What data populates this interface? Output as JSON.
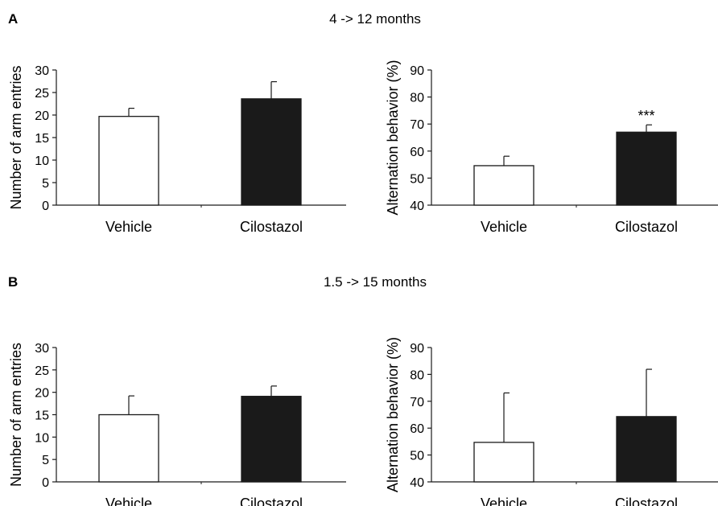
{
  "panels": [
    {
      "letter": "A",
      "title": "4 -> 12 months"
    },
    {
      "letter": "B",
      "title": "1.5 -> 15 months"
    }
  ],
  "colors": {
    "vehicle_fill": "#ffffff",
    "cilostazol_fill": "#1a1a1a",
    "stroke": "#1a1a1a"
  },
  "chart_data": [
    {
      "type": "bar",
      "panel": "A",
      "categories": [
        "Vehicle",
        "Cilostazol"
      ],
      "values": [
        19.7,
        23.6
      ],
      "error": [
        1.8,
        3.8
      ],
      "ylabel": "Number of arm entries",
      "ylim": [
        0,
        30
      ],
      "yticks": [
        0,
        5,
        10,
        15,
        20,
        25,
        30
      ],
      "annotations": [
        "",
        ""
      ]
    },
    {
      "type": "bar",
      "panel": "A",
      "categories": [
        "Vehicle",
        "Cilostazol"
      ],
      "values": [
        54.6,
        67.0
      ],
      "error": [
        3.5,
        2.7
      ],
      "ylabel": "Alternation behavior (%)",
      "ylim": [
        40,
        90
      ],
      "yticks": [
        40,
        50,
        60,
        70,
        80,
        90
      ],
      "annotations": [
        "",
        "***"
      ]
    },
    {
      "type": "bar",
      "panel": "B",
      "categories": [
        "Vehicle",
        "Cilostazol"
      ],
      "values": [
        15.0,
        19.1
      ],
      "error": [
        4.2,
        2.3
      ],
      "ylabel": "Number of arm entries",
      "ylim": [
        0,
        30
      ],
      "yticks": [
        0,
        5,
        10,
        15,
        20,
        25,
        30
      ],
      "annotations": [
        "",
        ""
      ]
    },
    {
      "type": "bar",
      "panel": "B",
      "categories": [
        "Vehicle",
        "Cilostazol"
      ],
      "values": [
        54.7,
        64.3
      ],
      "error": [
        18.4,
        17.6
      ],
      "ylabel": "Alternation behavior (%)",
      "ylim": [
        40,
        90
      ],
      "yticks": [
        40,
        50,
        60,
        70,
        80,
        90
      ],
      "annotations": [
        "",
        ""
      ]
    }
  ]
}
